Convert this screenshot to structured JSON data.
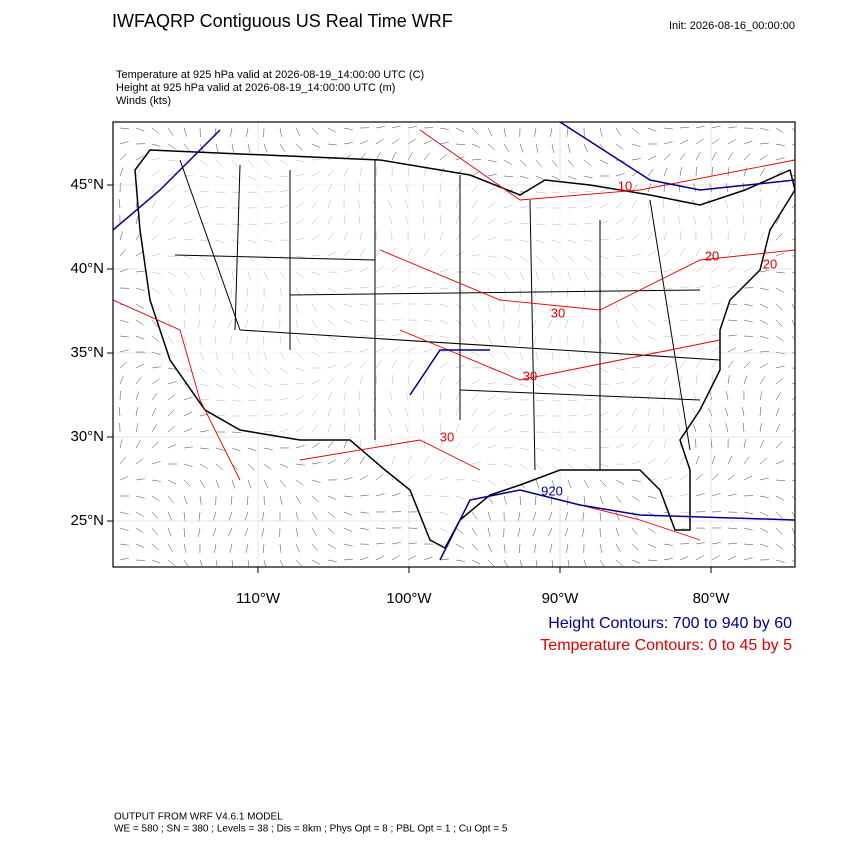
{
  "header": {
    "title": "IWFAQRP Contiguous US Real Time WRF",
    "init": "Init: 2026-08-16_00:00:00"
  },
  "fields": [
    "Temperature at 925 hPa valid at 2026-08-19_14:00:00 UTC   (C)",
    "Height at 925 hPa valid at 2026-08-19_14:00:00 UTC   (m)",
    "Winds   (kts)"
  ],
  "map": {
    "lat_labels": [
      "45°N",
      "40°N",
      "35°N",
      "30°N",
      "25°N"
    ],
    "lon_labels": [
      "110°W",
      "100°W",
      "90°W",
      "80°W"
    ],
    "temperature_labels": [
      "10",
      "20",
      "20",
      "30",
      "30",
      "30"
    ],
    "height_labels": [
      "920"
    ]
  },
  "legend": {
    "height": "Height Contours: 700 to 940 by 60",
    "temperature": "Temperature Contours: 0 to 45 by 5"
  },
  "footer": {
    "model": "OUTPUT FROM WRF V4.6.1 MODEL",
    "settings": "WE = 580 ; SN = 380 ; Levels = 38 ; Dis = 8km ; Phys Opt = 8 ; PBL Opt = 1 ; Cu Opt = 5"
  }
}
